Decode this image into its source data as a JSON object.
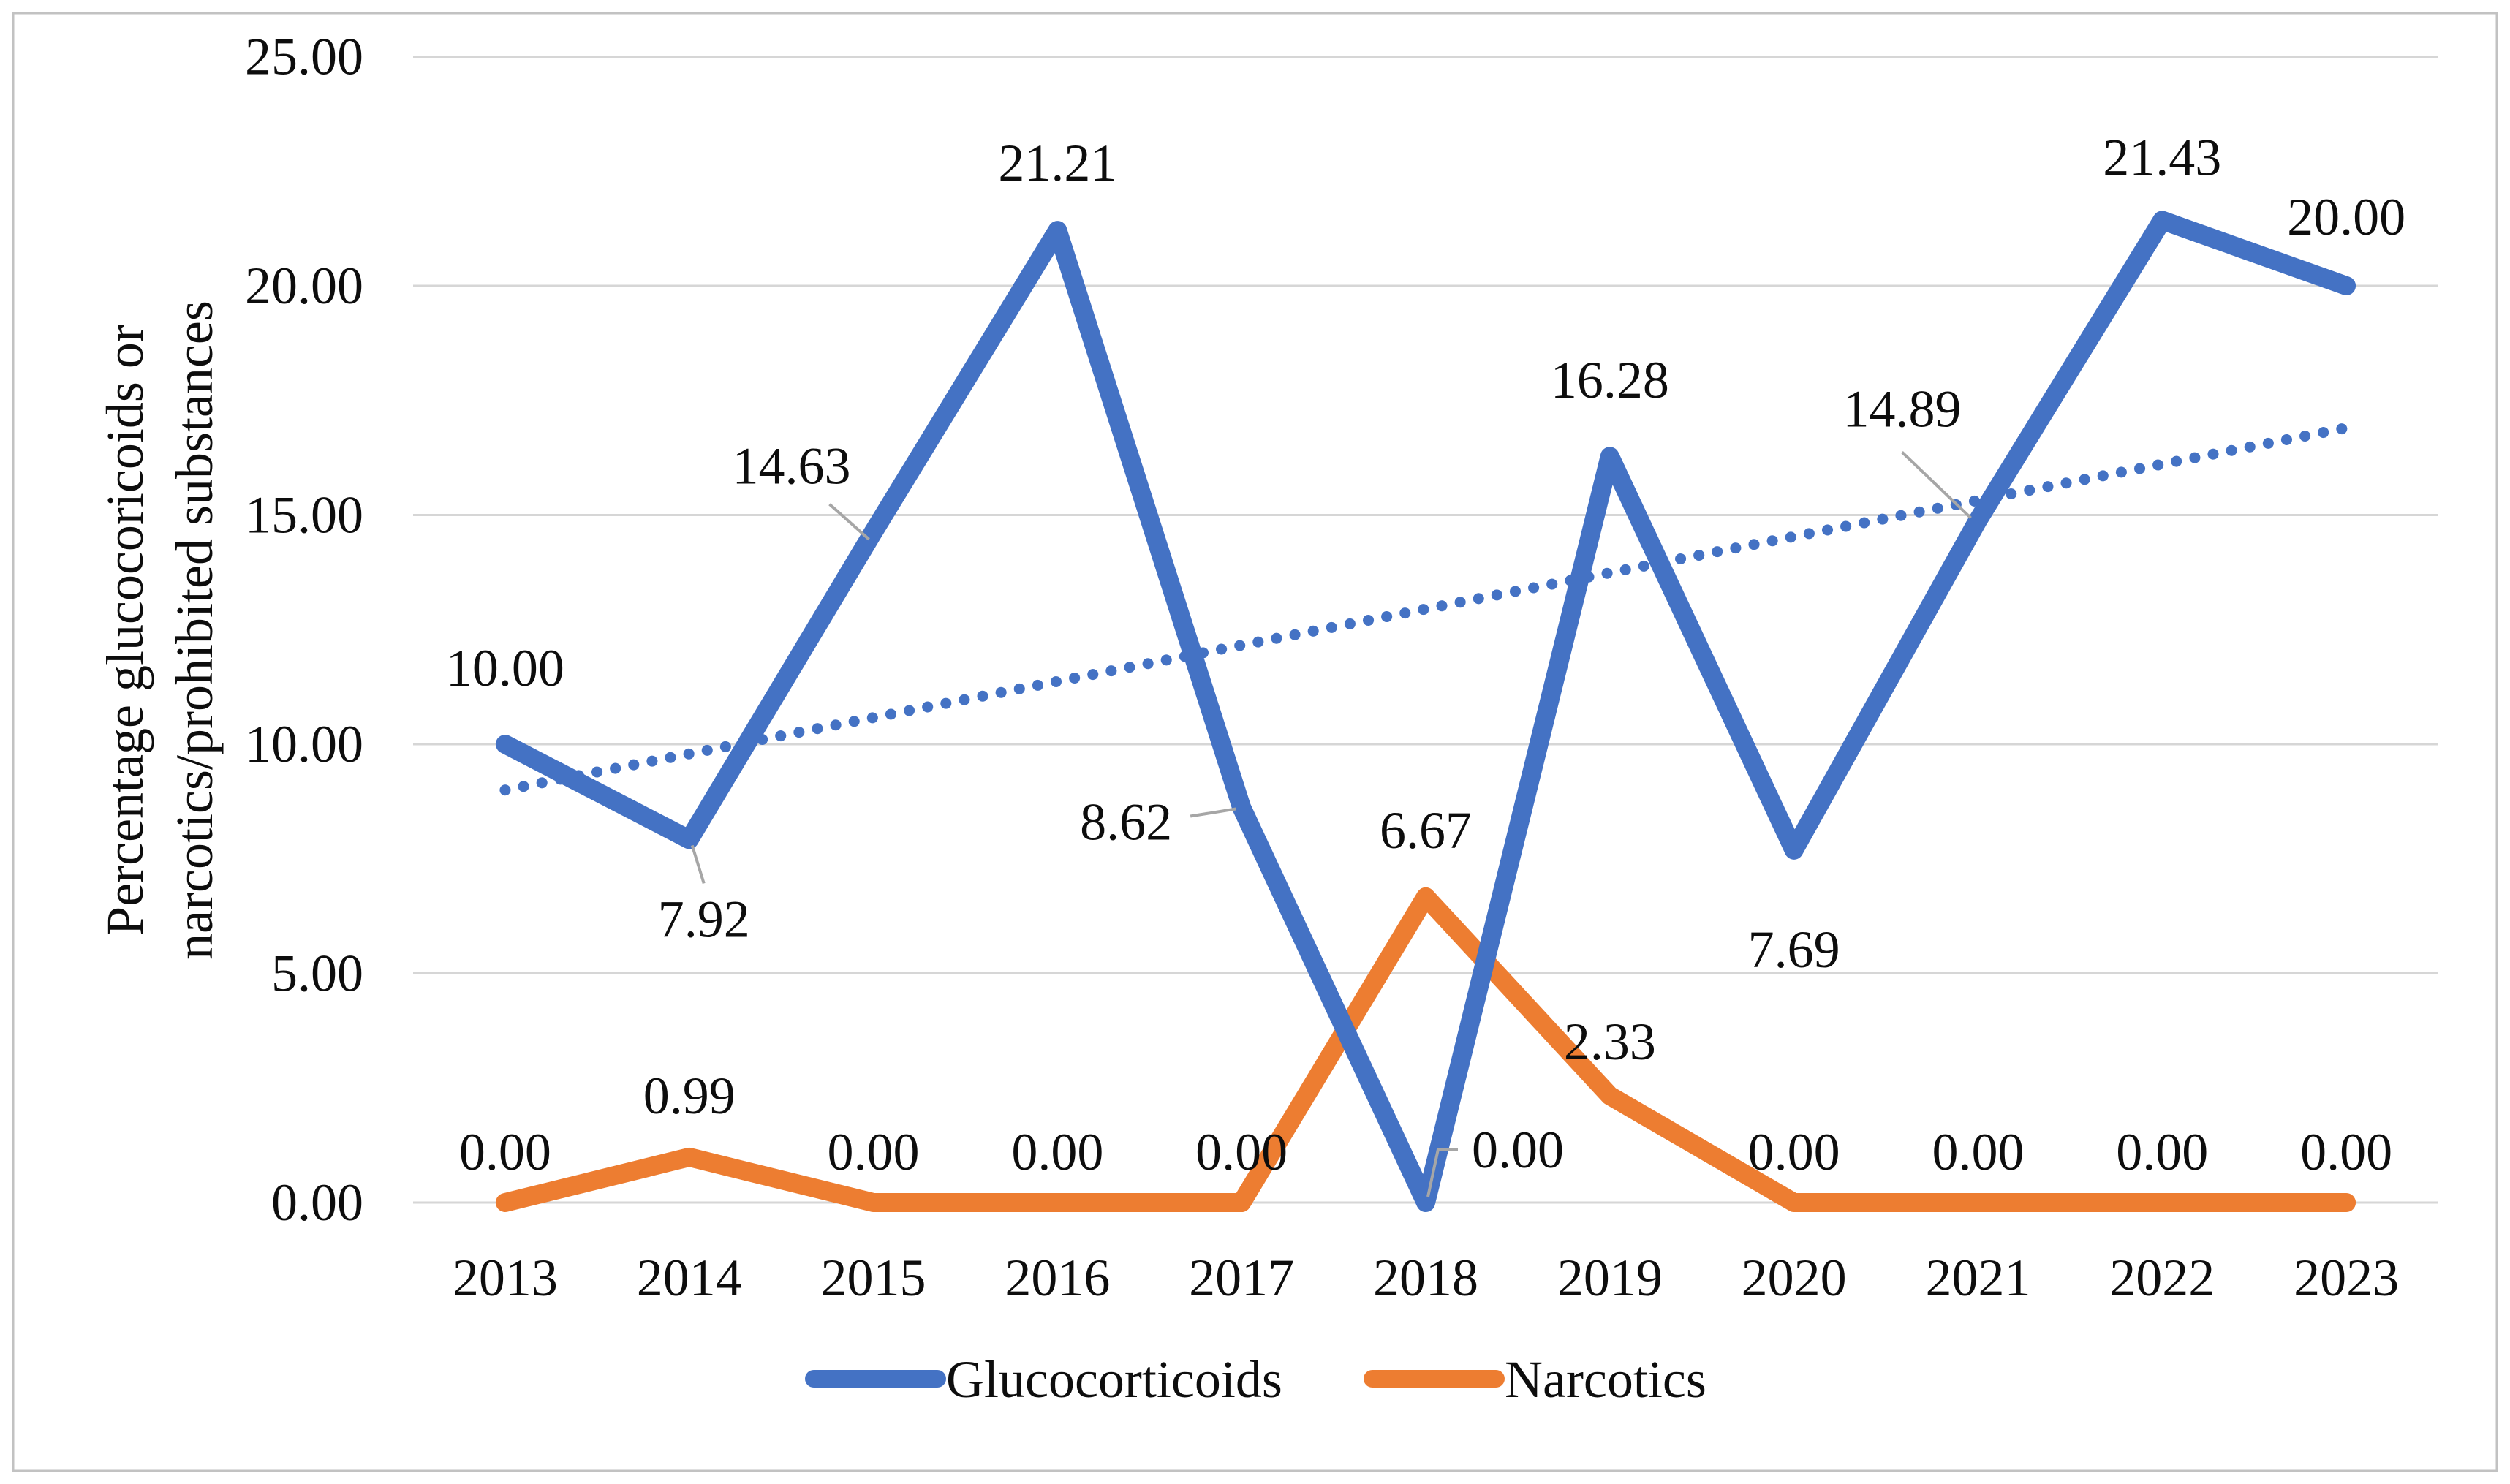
{
  "figure": {
    "background": "#ffffff",
    "border_color": "#c2c2c2"
  },
  "chart_data": {
    "type": "line",
    "title": "",
    "ylabel_line1": "Percentage glucocoricoids or",
    "ylabel_line2": "narcotics/prohibited substances",
    "xlabel": "",
    "categories": [
      "2013",
      "2014",
      "2015",
      "2016",
      "2017",
      "2018",
      "2019",
      "2020",
      "2021",
      "2022",
      "2023"
    ],
    "y_ticks": [
      {
        "value": 25,
        "label": "25.00"
      },
      {
        "value": 20,
        "label": "20.00"
      },
      {
        "value": 15,
        "label": "15.00"
      },
      {
        "value": 10,
        "label": "10.00"
      },
      {
        "value": 5,
        "label": "5.00"
      },
      {
        "value": 0,
        "label": "0.00"
      }
    ],
    "ylim": [
      0,
      25
    ],
    "grid": true,
    "gridline_color": "#d6d6d6",
    "leader_color": "#a6a6a6",
    "legend_position": "bottom",
    "series": [
      {
        "name": "Glucocorticoids",
        "color": "#4472C4",
        "values": [
          10.0,
          7.92,
          14.63,
          21.21,
          8.62,
          0.0,
          16.28,
          7.69,
          14.89,
          21.43,
          20.0
        ],
        "labels": [
          "10.00",
          "7.92",
          "14.63",
          "21.21",
          "8.62",
          "0.00",
          "16.28",
          "7.69",
          "14.89",
          "21.43",
          "20.00"
        ],
        "label_dx": [
          0,
          20,
          -112,
          0,
          -158,
          126,
          0,
          0,
          -104,
          0,
          0
        ],
        "label_dy": [
          -80,
          133,
          -66,
          -68,
          44,
          -48,
          -80,
          160,
          -128,
          -62,
          -70
        ],
        "leaders": [
          null,
          [
            [
              4,
              8
            ],
            [
              20,
              60
            ]
          ],
          [
            [
              -60,
              -38
            ],
            [
              -6,
              10
            ]
          ],
          null,
          [
            [
              -70,
              12
            ],
            [
              -8,
              2
            ]
          ],
          [
            [
              3,
              -8
            ],
            [
              17,
              -73
            ],
            [
              44,
              -73
            ]
          ],
          null,
          null,
          [
            [
              -104,
              -93
            ],
            [
              -10,
              -3
            ]
          ],
          null,
          null
        ]
      },
      {
        "name": "Narcotics",
        "color": "#ED7D31",
        "values": [
          0.0,
          0.99,
          0.0,
          0.0,
          0.0,
          6.67,
          2.33,
          0.0,
          0.0,
          0.0,
          0.0
        ],
        "labels": [
          "0.00",
          "0.99",
          "0.00",
          "0.00",
          "0.00",
          "6.67",
          "2.33",
          "0.00",
          "0.00",
          "0.00",
          "0.00"
        ],
        "label_dx": [
          0,
          0,
          0,
          0,
          0,
          0,
          0,
          0,
          0,
          0,
          0
        ],
        "label_dy": [
          -45,
          -60,
          -45,
          -45,
          -45,
          -67,
          -50,
          -45,
          -45,
          -45,
          -45
        ],
        "leaders": [
          null,
          null,
          null,
          null,
          null,
          null,
          null,
          null,
          null,
          null,
          null
        ]
      }
    ],
    "trendline": {
      "for": "Glucocorticoids",
      "color": "#4472C4",
      "style": "dotted",
      "start_value": 9.0,
      "end_value": 16.9
    },
    "legend": {
      "entries": [
        {
          "label": "Glucocorticoids",
          "color": "#4472C4"
        },
        {
          "label": "Narcotics",
          "color": "#ED7D31"
        }
      ]
    }
  }
}
